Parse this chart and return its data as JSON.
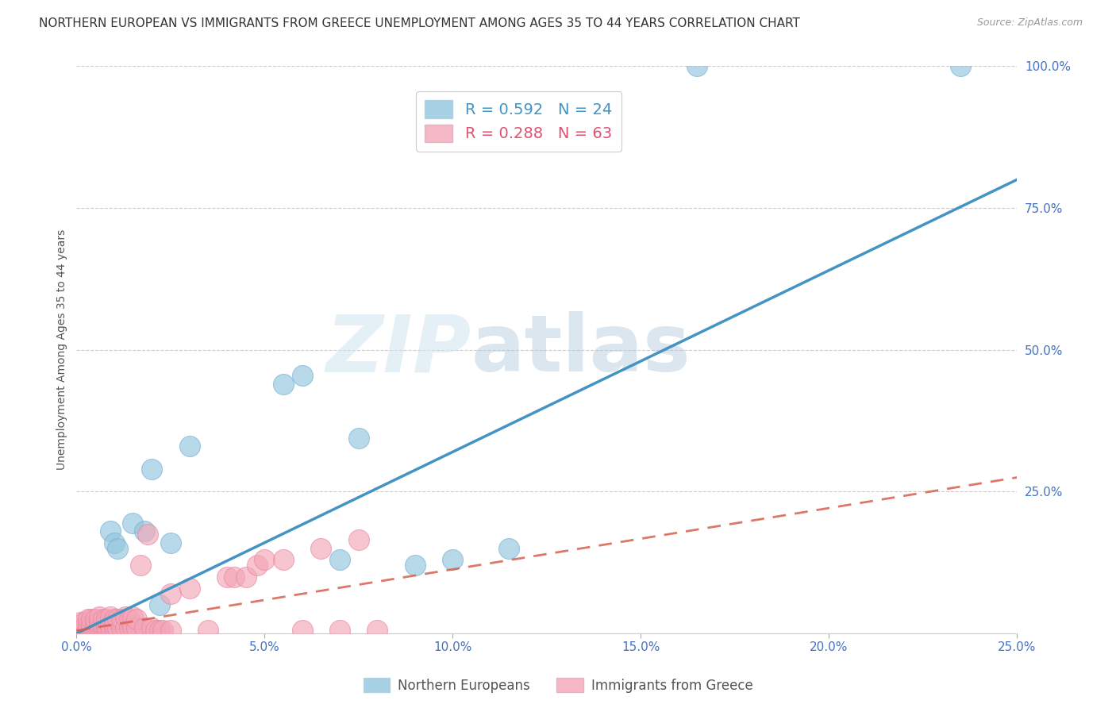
{
  "title": "NORTHERN EUROPEAN VS IMMIGRANTS FROM GREECE UNEMPLOYMENT AMONG AGES 35 TO 44 YEARS CORRELATION CHART",
  "source": "Source: ZipAtlas.com",
  "xlabel_ticks": [
    0.0,
    0.05,
    0.1,
    0.15,
    0.2,
    0.25
  ],
  "xlabel_labels": [
    "0.0%",
    "5.0%",
    "10.0%",
    "15.0%",
    "20.0%",
    "25.0%"
  ],
  "ylabel_ticks": [
    0.0,
    0.25,
    0.5,
    0.75,
    1.0
  ],
  "ylabel_labels": [
    "",
    "25.0%",
    "50.0%",
    "75.0%",
    "100.0%"
  ],
  "xlim": [
    0.0,
    0.25
  ],
  "ylim": [
    0.0,
    1.0
  ],
  "blue_color": "#92c5de",
  "pink_color": "#f4a6b8",
  "blue_line_color": "#4393c3",
  "pink_line_color": "#d6604d",
  "watermark_left": "ZIP",
  "watermark_right": "atlas",
  "legend_blue_r": "R = 0.592",
  "legend_blue_n": "N = 24",
  "legend_pink_r": "R = 0.288",
  "legend_pink_n": "N = 63",
  "blue_x": [
    0.001,
    0.003,
    0.005,
    0.006,
    0.008,
    0.009,
    0.01,
    0.011,
    0.013,
    0.015,
    0.018,
    0.02,
    0.022,
    0.025,
    0.03,
    0.055,
    0.06,
    0.07,
    0.075,
    0.09,
    0.1,
    0.115,
    0.165,
    0.235
  ],
  "blue_y": [
    0.005,
    0.005,
    0.01,
    0.01,
    0.01,
    0.18,
    0.16,
    0.15,
    0.005,
    0.195,
    0.18,
    0.29,
    0.05,
    0.16,
    0.33,
    0.44,
    0.455,
    0.13,
    0.345,
    0.12,
    0.13,
    0.15,
    1.0,
    1.0
  ],
  "pink_x": [
    0.001,
    0.001,
    0.002,
    0.002,
    0.003,
    0.003,
    0.003,
    0.004,
    0.004,
    0.004,
    0.005,
    0.005,
    0.005,
    0.006,
    0.006,
    0.006,
    0.006,
    0.007,
    0.007,
    0.007,
    0.008,
    0.008,
    0.008,
    0.009,
    0.009,
    0.009,
    0.01,
    0.01,
    0.01,
    0.011,
    0.011,
    0.012,
    0.012,
    0.013,
    0.013,
    0.014,
    0.014,
    0.015,
    0.015,
    0.016,
    0.016,
    0.017,
    0.018,
    0.019,
    0.02,
    0.021,
    0.022,
    0.023,
    0.025,
    0.025,
    0.03,
    0.035,
    0.04,
    0.042,
    0.045,
    0.048,
    0.05,
    0.055,
    0.06,
    0.065,
    0.07,
    0.075,
    0.08
  ],
  "pink_y": [
    0.01,
    0.02,
    0.01,
    0.02,
    0.01,
    0.015,
    0.025,
    0.01,
    0.015,
    0.025,
    0.01,
    0.015,
    0.025,
    0.01,
    0.015,
    0.02,
    0.03,
    0.01,
    0.015,
    0.025,
    0.01,
    0.015,
    0.025,
    0.01,
    0.015,
    0.03,
    0.01,
    0.015,
    0.025,
    0.01,
    0.025,
    0.01,
    0.025,
    0.01,
    0.03,
    0.01,
    0.025,
    0.01,
    0.03,
    0.01,
    0.025,
    0.12,
    0.01,
    0.175,
    0.01,
    0.005,
    0.005,
    0.005,
    0.07,
    0.005,
    0.08,
    0.005,
    0.1,
    0.1,
    0.1,
    0.12,
    0.13,
    0.13,
    0.005,
    0.15,
    0.005,
    0.165,
    0.005
  ],
  "blue_line_x": [
    0.0,
    0.25
  ],
  "blue_line_y": [
    0.0,
    0.8
  ],
  "pink_line_x": [
    0.0,
    0.25
  ],
  "pink_line_y": [
    0.005,
    0.275
  ],
  "ylabel": "Unemployment Among Ages 35 to 44 years",
  "legend_label_blue": "Northern Europeans",
  "legend_label_pink": "Immigrants from Greece",
  "background_color": "#ffffff",
  "grid_color": "#cccccc",
  "title_fontsize": 11,
  "axis_label_fontsize": 10,
  "tick_fontsize": 11
}
